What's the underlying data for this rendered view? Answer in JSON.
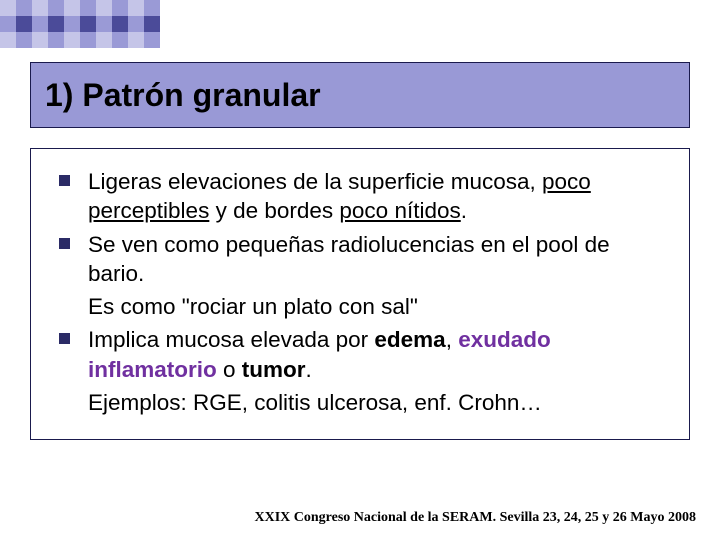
{
  "decorSquares": {
    "colors": [
      "#c5c5e8",
      "#9a9ad6",
      "#c5c5e8",
      "#9a9ad6",
      "#c5c5e8",
      "#9a9ad6",
      "#c5c5e8",
      "#9a9ad6",
      "#c5c5e8",
      "#9a9ad6",
      "#9a9ad6",
      "#4b4b99",
      "#9a9ad6",
      "#4b4b99",
      "#9a9ad6",
      "#4b4b99",
      "#9a9ad6",
      "#4b4b99",
      "#9a9ad6",
      "#4b4b99",
      "#c5c5e8",
      "#9a9ad6",
      "#c5c5e8",
      "#9a9ad6",
      "#c5c5e8",
      "#9a9ad6",
      "#c5c5e8",
      "#9a9ad6",
      "#c5c5e8",
      "#9a9ad6"
    ],
    "squareSize": 16,
    "cols": 10,
    "rows": 3
  },
  "title": {
    "text": "1) Patrón granular",
    "background": "#9999d6",
    "borderColor": "#1a1a4d",
    "fontColor": "#000000",
    "fontSize": 32
  },
  "content": {
    "borderColor": "#1a1a4d",
    "bulletColor": "#2b2b66",
    "textColor": "#000000",
    "fontSize": 22.5,
    "highlightPurple": "#7030a0",
    "items": [
      {
        "hasBullet": true,
        "segments": [
          {
            "t": "Ligeras elevaciones de la superficie mucosa, "
          },
          {
            "t": "poco perceptibles",
            "u": true
          },
          {
            "t": " y de bordes "
          },
          {
            "t": "poco nítidos",
            "u": true
          },
          {
            "t": "."
          }
        ]
      },
      {
        "hasBullet": true,
        "segments": [
          {
            "t": "Se ven como pequeñas radiolucencias en el pool de bario."
          }
        ]
      },
      {
        "hasBullet": false,
        "segments": [
          {
            "t": "Es como \"rociar un plato con sal\""
          }
        ]
      },
      {
        "hasBullet": true,
        "segments": [
          {
            "t": "Implica mucosa elevada por "
          },
          {
            "t": "edema",
            "b": true
          },
          {
            "t": ", "
          },
          {
            "t": "exudado inflamatorio",
            "b": true,
            "p": true
          },
          {
            "t": " o "
          },
          {
            "t": "tumor",
            "b": true
          },
          {
            "t": "."
          }
        ]
      },
      {
        "hasBullet": false,
        "segments": [
          {
            "t": "Ejemplos: RGE, colitis ulcerosa, enf. Crohn…"
          }
        ]
      }
    ]
  },
  "footer": {
    "text": "XXIX Congreso Nacional de la SERAM. Sevilla 23, 24, 25 y 26 Mayo 2008",
    "fontSize": 14,
    "color": "#000000"
  }
}
